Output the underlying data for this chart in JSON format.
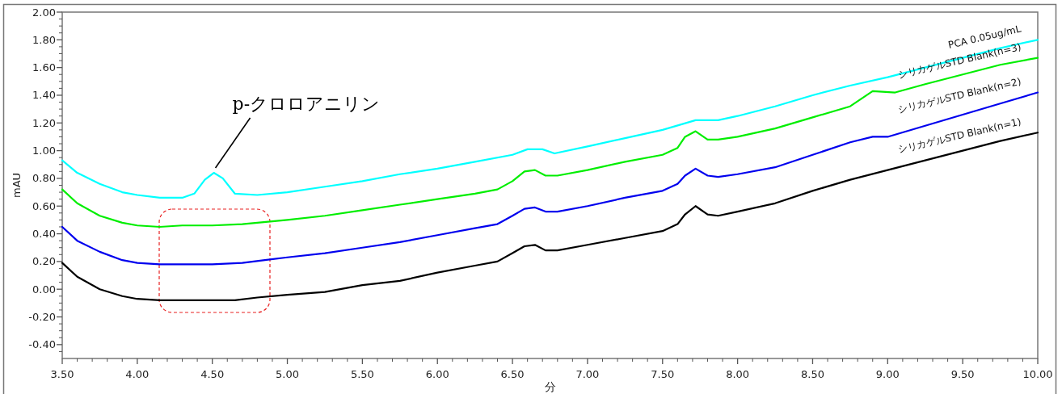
{
  "chart_data": {
    "type": "line",
    "xlabel": "分",
    "ylabel": "mAU",
    "xlim": [
      3.5,
      10.0
    ],
    "ylim": [
      -0.5,
      2.0
    ],
    "xticks": [
      {
        "value": 3.5,
        "label": "3.50"
      },
      {
        "value": 4.0,
        "label": "4.00"
      },
      {
        "value": 4.5,
        "label": "4.50"
      },
      {
        "value": 5.0,
        "label": "5.00"
      },
      {
        "value": 5.5,
        "label": "5.50"
      },
      {
        "value": 6.0,
        "label": "6.00"
      },
      {
        "value": 6.5,
        "label": "6.50"
      },
      {
        "value": 7.0,
        "label": "7.00"
      },
      {
        "value": 7.5,
        "label": "7.50"
      },
      {
        "value": 8.0,
        "label": "8.00"
      },
      {
        "value": 8.5,
        "label": "8.50"
      },
      {
        "value": 9.0,
        "label": "9.00"
      },
      {
        "value": 9.5,
        "label": "9.50"
      },
      {
        "value": 10.0,
        "label": "10.00"
      }
    ],
    "yticks": [
      {
        "value": -0.4,
        "label": "-0.40"
      },
      {
        "value": -0.2,
        "label": "-0.20"
      },
      {
        "value": 0,
        "label": "0.00"
      },
      {
        "value": 0.2,
        "label": "0.20"
      },
      {
        "value": 0.4,
        "label": "0.40"
      },
      {
        "value": 0.6,
        "label": "0.60"
      },
      {
        "value": 0.8,
        "label": "0.80"
      },
      {
        "value": 1.0,
        "label": "1.00"
      },
      {
        "value": 1.2,
        "label": "1.20"
      },
      {
        "value": 1.4,
        "label": "1.40"
      },
      {
        "value": 1.6,
        "label": "1.60"
      },
      {
        "value": 1.8,
        "label": "1.80"
      },
      {
        "value": 2.0,
        "label": "2.00"
      }
    ],
    "grid": false,
    "legend": false,
    "marker": "none",
    "line_style": "solid",
    "series": [
      {
        "name": "シリカゲルSTD Blank(n=1)",
        "color": "#000000",
        "x": [
          3.5,
          3.6,
          3.75,
          3.9,
          4.0,
          4.15,
          4.3,
          4.5,
          4.65,
          4.8,
          5.0,
          5.25,
          5.5,
          5.75,
          6.0,
          6.25,
          6.4,
          6.5,
          6.58,
          6.65,
          6.72,
          6.8,
          7.0,
          7.25,
          7.5,
          7.6,
          7.65,
          7.72,
          7.8,
          7.87,
          8.0,
          8.25,
          8.5,
          8.75,
          9.0,
          9.25,
          9.5,
          9.75,
          10.0
        ],
        "values": [
          0.19,
          0.09,
          0.0,
          -0.05,
          -0.07,
          -0.08,
          -0.08,
          -0.08,
          -0.08,
          -0.06,
          -0.04,
          -0.02,
          0.03,
          0.06,
          0.12,
          0.17,
          0.2,
          0.26,
          0.31,
          0.32,
          0.28,
          0.28,
          0.32,
          0.37,
          0.42,
          0.47,
          0.54,
          0.6,
          0.54,
          0.53,
          0.56,
          0.62,
          0.71,
          0.79,
          0.86,
          0.93,
          1.0,
          1.07,
          1.13
        ]
      },
      {
        "name": "シリカゲルSTD Blank(n=2)",
        "color": "#0000ee",
        "x": [
          3.5,
          3.6,
          3.75,
          3.9,
          4.0,
          4.15,
          4.3,
          4.5,
          4.7,
          4.85,
          5.0,
          5.25,
          5.5,
          5.75,
          6.0,
          6.25,
          6.4,
          6.5,
          6.58,
          6.65,
          6.72,
          6.8,
          7.0,
          7.25,
          7.5,
          7.6,
          7.65,
          7.72,
          7.8,
          7.87,
          8.0,
          8.25,
          8.5,
          8.75,
          8.9,
          9.0,
          9.25,
          9.5,
          9.75,
          10.0
        ],
        "values": [
          0.45,
          0.35,
          0.27,
          0.21,
          0.19,
          0.18,
          0.18,
          0.18,
          0.19,
          0.21,
          0.23,
          0.26,
          0.3,
          0.34,
          0.39,
          0.44,
          0.47,
          0.53,
          0.58,
          0.59,
          0.56,
          0.56,
          0.6,
          0.66,
          0.71,
          0.76,
          0.82,
          0.87,
          0.82,
          0.81,
          0.83,
          0.88,
          0.97,
          1.06,
          1.1,
          1.1,
          1.18,
          1.26,
          1.34,
          1.42
        ]
      },
      {
        "name": "シリカゲルSTD Blank(n=3)",
        "color": "#00ee00",
        "x": [
          3.5,
          3.6,
          3.75,
          3.9,
          4.0,
          4.15,
          4.3,
          4.5,
          4.7,
          4.9,
          5.0,
          5.25,
          5.5,
          5.75,
          6.0,
          6.25,
          6.4,
          6.5,
          6.58,
          6.65,
          6.72,
          6.8,
          7.0,
          7.25,
          7.5,
          7.6,
          7.65,
          7.72,
          7.8,
          7.87,
          8.0,
          8.25,
          8.5,
          8.75,
          8.9,
          9.05,
          9.25,
          9.5,
          9.75,
          10.0
        ],
        "values": [
          0.72,
          0.62,
          0.53,
          0.48,
          0.46,
          0.45,
          0.46,
          0.46,
          0.47,
          0.49,
          0.5,
          0.53,
          0.57,
          0.61,
          0.65,
          0.69,
          0.72,
          0.78,
          0.85,
          0.86,
          0.82,
          0.82,
          0.86,
          0.92,
          0.97,
          1.02,
          1.1,
          1.14,
          1.08,
          1.08,
          1.1,
          1.16,
          1.24,
          1.32,
          1.43,
          1.42,
          1.48,
          1.55,
          1.62,
          1.67
        ]
      },
      {
        "name": "PCA 0.05ug/mL",
        "color": "#00ffff",
        "x": [
          3.5,
          3.6,
          3.75,
          3.9,
          4.0,
          4.15,
          4.3,
          4.38,
          4.45,
          4.51,
          4.57,
          4.65,
          4.8,
          5.0,
          5.25,
          5.5,
          5.75,
          6.0,
          6.25,
          6.5,
          6.6,
          6.7,
          6.78,
          7.0,
          7.25,
          7.5,
          7.72,
          7.87,
          8.0,
          8.25,
          8.5,
          8.75,
          9.0,
          9.25,
          9.5,
          9.75,
          10.0
        ],
        "values": [
          0.93,
          0.84,
          0.76,
          0.7,
          0.68,
          0.66,
          0.66,
          0.69,
          0.79,
          0.84,
          0.8,
          0.69,
          0.68,
          0.7,
          0.74,
          0.78,
          0.83,
          0.87,
          0.92,
          0.97,
          1.01,
          1.01,
          0.98,
          1.03,
          1.09,
          1.15,
          1.22,
          1.22,
          1.25,
          1.32,
          1.4,
          1.47,
          1.53,
          1.6,
          1.67,
          1.74,
          1.8
        ]
      }
    ],
    "annotations": [
      {
        "text": "p-クロロアニリン",
        "x": 4.51,
        "y": 0.84
      }
    ]
  }
}
